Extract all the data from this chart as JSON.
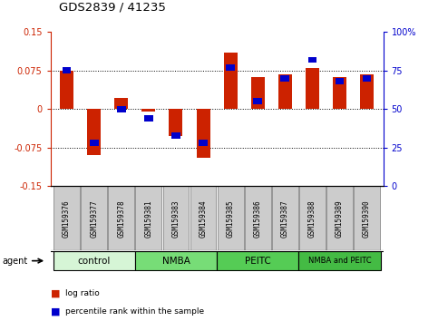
{
  "title": "GDS2839 / 41235",
  "samples": [
    "GSM159376",
    "GSM159377",
    "GSM159378",
    "GSM159381",
    "GSM159383",
    "GSM159384",
    "GSM159385",
    "GSM159386",
    "GSM159387",
    "GSM159388",
    "GSM159389",
    "GSM159390"
  ],
  "log_ratio": [
    0.075,
    -0.09,
    0.022,
    -0.005,
    -0.052,
    -0.095,
    0.11,
    0.063,
    0.068,
    0.08,
    0.063,
    0.068
  ],
  "percentile_rank": [
    75,
    28,
    50,
    44,
    33,
    28,
    77,
    55,
    70,
    82,
    68,
    70
  ],
  "groups": [
    {
      "label": "control",
      "start": 0,
      "end": 3,
      "color": "#d6f5d6"
    },
    {
      "label": "NMBA",
      "start": 3,
      "end": 6,
      "color": "#77dd77"
    },
    {
      "label": "PEITC",
      "start": 6,
      "end": 9,
      "color": "#55cc55"
    },
    {
      "label": "NMBA and PEITC",
      "start": 9,
      "end": 12,
      "color": "#44bb44"
    }
  ],
  "ylim": [
    -0.15,
    0.15
  ],
  "yticks_left": [
    -0.15,
    -0.075,
    0,
    0.075,
    0.15
  ],
  "yticks_right": [
    0,
    25,
    50,
    75,
    100
  ],
  "red_color": "#cc2200",
  "blue_color": "#0000cc",
  "bar_width": 0.5,
  "background_color": "#ffffff",
  "title_color": "#000000",
  "left_axis_color": "#cc2200",
  "right_axis_color": "#0000cc",
  "sample_box_color": "#cccccc",
  "sample_box_edge": "#888888"
}
